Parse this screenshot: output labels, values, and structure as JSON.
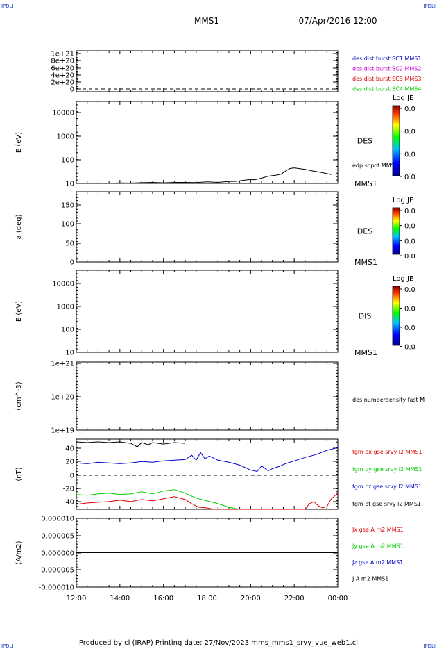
{
  "header": {
    "corner_label": "IPDLI",
    "spacecraft": "MMS1",
    "datetime": "07/Apr/2016 12:00"
  },
  "footer": {
    "text": "Produced by cl (IRAP)   Printing date: 27/Nov/2023   mms_mms1_srvy_vue_web1.cl"
  },
  "colors": {
    "blue": "#0000cc",
    "magenta": "#cc00cc",
    "red": "#dd0000",
    "green": "#00cc00",
    "black": "#000000"
  },
  "colorbar_label": "Log JE",
  "chart_data": [
    {
      "id": "p1",
      "type": "line",
      "yticks": [
        "1e+21",
        "8e+20",
        "6e+20",
        "4e+20",
        "2e+20",
        "0"
      ],
      "ylim": [
        0,
        1.1e+21
      ],
      "legend": [
        {
          "text": "des dist burst SC1 MMS1",
          "color": "#0000cc"
        },
        {
          "text": "des dist burst SC2 MMS2",
          "color": "#cc00cc"
        },
        {
          "text": "des dist burst SC3 MMS3",
          "color": "#dd0000"
        },
        {
          "text": "des dist burst SC4 MMS4",
          "color": "#00cc00"
        }
      ],
      "zero_line": 0
    },
    {
      "id": "p2",
      "type": "line",
      "scale": "log",
      "ylabel": "E (eV)",
      "yticks": [
        "10000",
        "1000",
        "100",
        "10"
      ],
      "ylim": [
        10,
        15000
      ],
      "side_label": "DES",
      "corner_label": "MMS1",
      "legend": [
        {
          "text": "edp scpot MMS1",
          "color": "#000000"
        }
      ],
      "colorbar": {
        "title": "Log JE",
        "ticks": [
          "0.0",
          "0.0",
          "0.0",
          "0.0"
        ]
      },
      "series": [
        {
          "name": "edp scpot MMS1",
          "color": "#000000",
          "x": [
            0.3,
            1.0,
            1.5,
            2.0,
            2.5,
            3.0,
            3.5,
            4.0,
            4.5,
            5.0,
            5.5,
            6.0,
            6.5,
            7.0,
            7.3,
            7.6,
            7.9,
            8.2,
            8.5,
            8.8,
            9.0,
            9.2,
            9.4,
            9.6,
            9.8,
            10.0,
            10.2,
            10.5,
            10.8,
            11.1,
            11.4,
            11.7
          ],
          "y": [
            10,
            10,
            10.2,
            10.5,
            10.3,
            10.7,
            11,
            10.6,
            11,
            11,
            10.8,
            11.5,
            11,
            12,
            12,
            13,
            14,
            14,
            16,
            19,
            20,
            21,
            23,
            30,
            38,
            40,
            38,
            35,
            31,
            28,
            25,
            22
          ]
        }
      ]
    },
    {
      "id": "p3",
      "type": "line",
      "ylabel": "a (deg)",
      "yticks": [
        "150",
        "100",
        "50",
        "0"
      ],
      "ylim": [
        0,
        185
      ],
      "side_label": "DES",
      "corner_label": "MMS1",
      "colorbar": {
        "title": "Log JE",
        "ticks": [
          "0.0",
          "0.0",
          "0.0",
          "0.0"
        ]
      }
    },
    {
      "id": "p4",
      "type": "line",
      "scale": "log",
      "ylabel": "E (eV)",
      "yticks": [
        "10000",
        "1000",
        "100",
        "10"
      ],
      "ylim": [
        10,
        15000
      ],
      "side_label": "DIS",
      "corner_label": "MMS1",
      "colorbar": {
        "title": "Log JE",
        "ticks": [
          "0.0",
          "0.0",
          "0.0",
          "0.0"
        ]
      }
    },
    {
      "id": "p5",
      "type": "line",
      "scale": "log",
      "ylabel": "(cm^-3)",
      "yticks": [
        "1e+21",
        "1e+20",
        "1e+19"
      ],
      "ylim": [
        1e+19,
        1e+21
      ],
      "legend": [
        {
          "text": "des numberdensity fast M",
          "color": "#000000"
        }
      ]
    },
    {
      "id": "p6",
      "type": "line",
      "ylabel": "(nT)",
      "yticks": [
        "40",
        "20",
        "0",
        "-20",
        "-40"
      ],
      "ylim": [
        -48,
        52
      ],
      "zero_line": 0,
      "legend": [
        {
          "text": "fgm bx gse srvy l2 MMS1",
          "color": "#dd0000"
        },
        {
          "text": "fgm by gse srvy l2 MMS1",
          "color": "#00cc00"
        },
        {
          "text": "fgm bz gse srvy l2 MMS1",
          "color": "#0000cc"
        },
        {
          "text": "fgm bt gse srvy l2 MMS1",
          "color": "#000000"
        }
      ],
      "series": [
        {
          "name": "fgm bt gse srvy l2 MMS1",
          "color": "#000000",
          "x": [
            0.0,
            0.5,
            1.0,
            1.5,
            2.0,
            2.5,
            2.8,
            3.0,
            3.3,
            3.5,
            4.0,
            4.5,
            5.0
          ],
          "y": [
            48,
            47,
            48,
            47,
            48,
            46,
            41,
            47,
            44,
            47,
            45,
            47,
            46
          ]
        },
        {
          "name": "fgm bz gse srvy l2 MMS1",
          "color": "#0000cc",
          "x": [
            0.0,
            0.5,
            1.0,
            1.5,
            2.0,
            2.5,
            3.0,
            3.5,
            4.0,
            4.5,
            5.0,
            5.3,
            5.5,
            5.7,
            5.9,
            6.1,
            6.5,
            7.0,
            7.5,
            8.0,
            8.3,
            8.5,
            8.8,
            9.0,
            9.3,
            9.6,
            10.0,
            10.5,
            11.0,
            11.5,
            12.0
          ],
          "y": [
            18,
            17,
            19,
            18,
            17,
            18,
            20,
            19,
            21,
            22,
            23,
            29,
            22,
            33,
            24,
            28,
            22,
            19,
            15,
            8,
            6,
            14,
            7,
            10,
            13,
            17,
            21,
            26,
            30,
            36,
            40
          ]
        },
        {
          "name": "fgm bx gse srvy l2 MMS1",
          "color": "#dd0000",
          "x": [
            0.0,
            0.5,
            1.0,
            1.5,
            2.0,
            2.5,
            3.0,
            3.5,
            4.0,
            4.5,
            5.0,
            5.3,
            5.6,
            6.0,
            6.3,
            10.5,
            10.7,
            10.9,
            11.1,
            11.3,
            11.5,
            11.7,
            12.0
          ],
          "y": [
            -41,
            -39,
            -38,
            -37,
            -35,
            -37,
            -34,
            -36,
            -33,
            -30,
            -34,
            -40,
            -45,
            -46,
            -48,
            -48,
            -40,
            -37,
            -43,
            -46,
            -44,
            -33,
            -25
          ]
        },
        {
          "name": "fgm by gse srvy l2 MMS1",
          "color": "#00cc00",
          "x": [
            0.0,
            0.5,
            1.0,
            1.5,
            2.0,
            2.5,
            3.0,
            3.5,
            4.0,
            4.5,
            5.0,
            5.2,
            5.5,
            6.0,
            6.5,
            7.0,
            7.5
          ],
          "y": [
            -27,
            -28,
            -26,
            -25,
            -27,
            -26,
            -23,
            -26,
            -22,
            -20,
            -25,
            -28,
            -32,
            -36,
            -40,
            -45,
            -48
          ]
        }
      ]
    },
    {
      "id": "p7",
      "type": "line",
      "ylabel": "(A/m2)",
      "yticks": [
        "0.000010",
        "0.000005",
        "0.000000",
        "-0.000005",
        "-0.000010"
      ],
      "ylim": [
        -1e-05,
        1e-05
      ],
      "legend": [
        {
          "text": "Jx gse A m2 MMS1",
          "color": "#dd0000"
        },
        {
          "text": "Jy gse A m2 MMS1",
          "color": "#00cc00"
        },
        {
          "text": "Jz gse A m2 MMS1",
          "color": "#0000cc"
        },
        {
          "text": "J A m2 MMS1",
          "color": "#000000"
        }
      ],
      "series": [
        {
          "name": "J A m2 MMS1",
          "color": "#000000",
          "x": [
            0,
            12
          ],
          "y": [
            0,
            0
          ]
        }
      ],
      "xticks": [
        "12:00",
        "14:00",
        "16:00",
        "18:00",
        "20:00",
        "22:00",
        "00:00"
      ]
    }
  ]
}
